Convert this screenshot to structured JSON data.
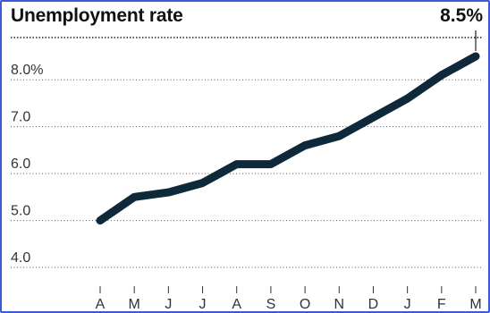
{
  "chart_data": {
    "type": "line",
    "title": "Unemployment rate",
    "categories": [
      "A",
      "M",
      "J",
      "J",
      "A",
      "S",
      "O",
      "N",
      "D",
      "J",
      "F",
      "M"
    ],
    "values": [
      5.0,
      5.5,
      5.6,
      5.8,
      6.2,
      6.2,
      6.6,
      6.8,
      7.2,
      7.6,
      8.1,
      8.5
    ],
    "y_tick_labels": [
      "4.0",
      "5.0",
      "6.0",
      "7.0",
      "8.0%"
    ],
    "y_ticks": [
      4.0,
      5.0,
      6.0,
      7.0,
      8.0
    ],
    "ylim": [
      3.6,
      8.9
    ],
    "grid": true,
    "grid_style": "dotted",
    "callout_label": "8.5%",
    "line_color": "#0e2a3a",
    "xlabel": "",
    "ylabel": ""
  }
}
